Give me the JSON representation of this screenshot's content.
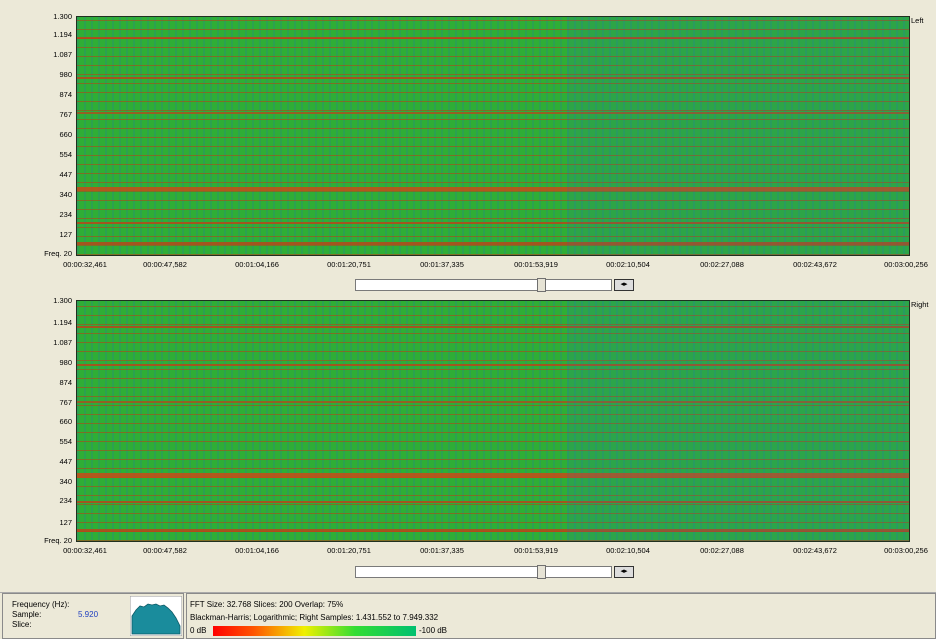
{
  "spectrogram": {
    "freq_labels": [
      "1.300",
      "1.194",
      "1.087",
      "980",
      "874",
      "767",
      "660",
      "554",
      "447",
      "340",
      "234",
      "127",
      "Freq. 20"
    ],
    "time_labels": [
      "00:00:32,461",
      "00:00:47,582",
      "00:01:04,166",
      "00:01:20,751",
      "00:01:37,335",
      "00:01:53,919",
      "00:02:10,504",
      "00:02:27,088",
      "00:02:43,672",
      "00:03:00,256"
    ],
    "left_channel": "Left",
    "right_channel": "Right",
    "scroll_arrows": "◂▸"
  },
  "status": {
    "frequency_label": "Frequency (Hz):",
    "sample_label": "Sample:",
    "sample_value": "5.920",
    "slice_label": "Slice:",
    "fft_info": "FFT Size: 32.768  Slices: 200  Overlap: 75%",
    "window_info": "Blackman-Harris; Logarithmic; Right  Samples: 1.431.552 to 7.949.332",
    "scale_min": "0 dB",
    "scale_max": "-100 dB"
  },
  "colors": {
    "high": "#ff2a00",
    "mid": "#2fae36",
    "low": "#1e6ec8"
  }
}
